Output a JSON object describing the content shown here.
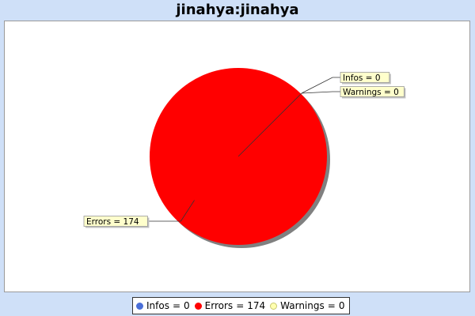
{
  "chart_data": {
    "type": "pie",
    "title": "jinahya:jinahya",
    "categories": [
      "Infos",
      "Errors",
      "Warnings"
    ],
    "values": [
      0,
      174,
      0
    ],
    "colors": [
      "#4a6fd8",
      "#ff0000",
      "#ffffb0"
    ],
    "slice_labels": [
      "Infos = 0",
      "Errors = 174",
      "Warnings = 0"
    ],
    "legend": {
      "placement": "bottom",
      "items": [
        {
          "label": "Infos",
          "sep": "=",
          "value": "0",
          "color": "#4a6fd8"
        },
        {
          "label": "Errors",
          "sep": "=",
          "value": "174",
          "color": "#ff0000"
        },
        {
          "label": "Warnings",
          "sep": "=",
          "value": "0",
          "color": "#ffffb0"
        }
      ]
    }
  },
  "colors": {
    "background": "#cfe0f8",
    "plot_background": "#ffffff",
    "label_background": "#ffffcc",
    "leader_line": "#333333",
    "shadow": "#808080"
  }
}
